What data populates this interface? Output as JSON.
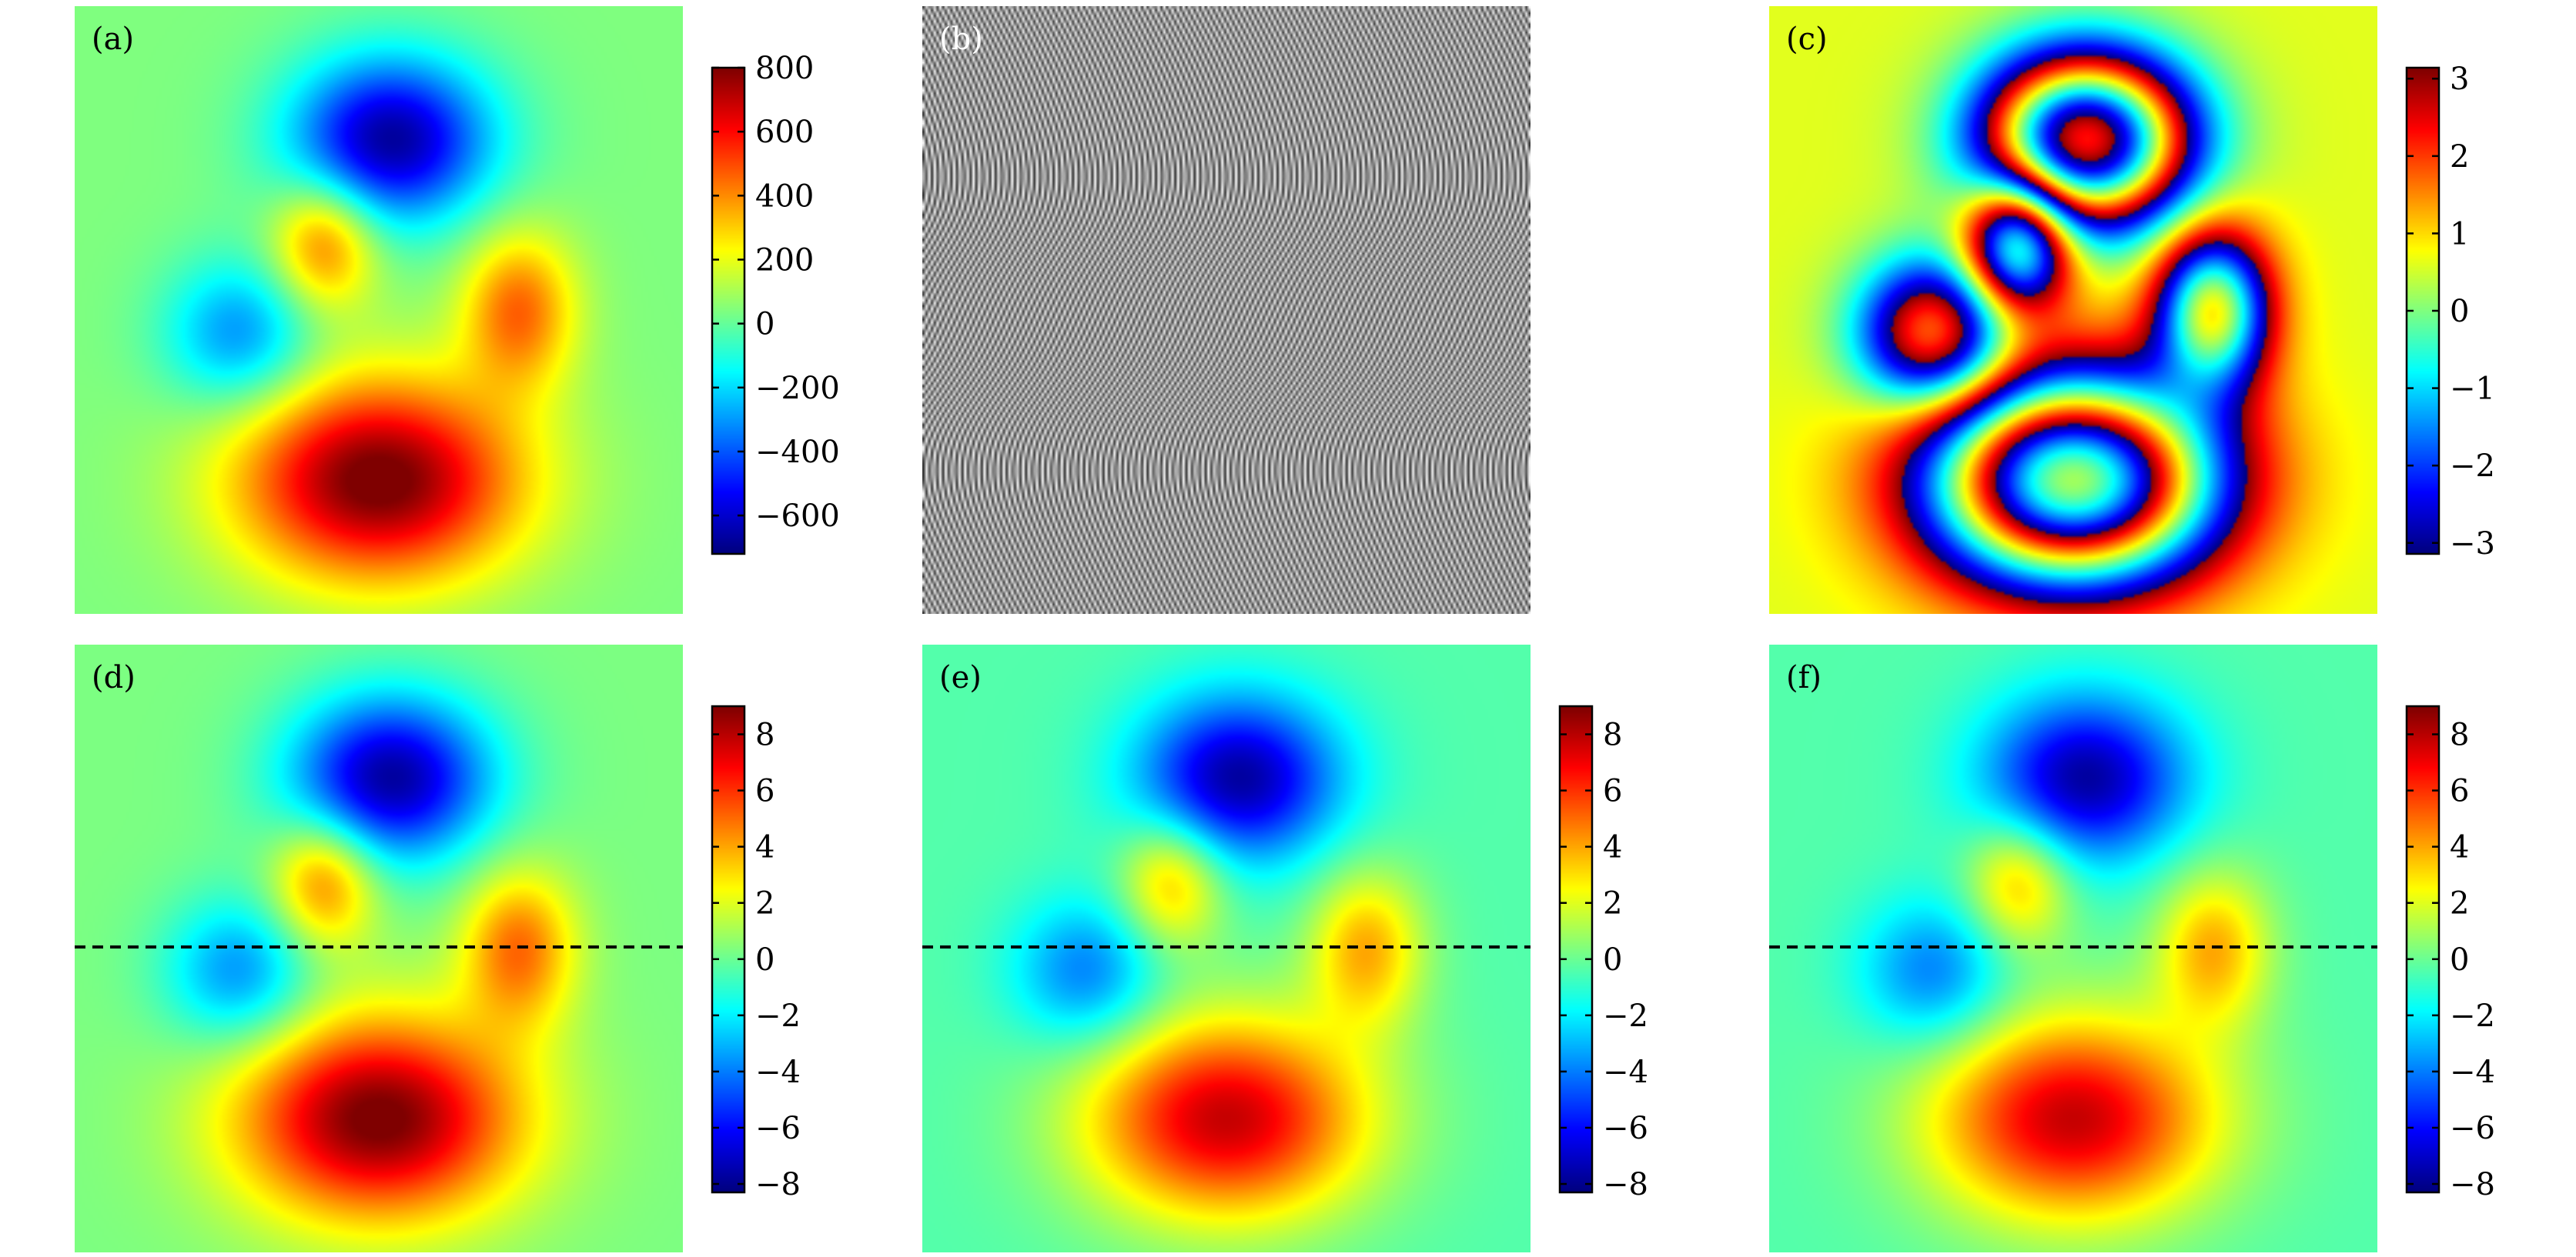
{
  "colors": {
    "jet": [
      "#00007f",
      "#0000ff",
      "#007fff",
      "#00ffff",
      "#7fff7f",
      "#ffff00",
      "#ff7f00",
      "#ff0000",
      "#7f0000"
    ],
    "background": "#ffffff",
    "label_dark": "#000000",
    "label_light": "#ffffff",
    "dashed_line": "#000000"
  },
  "chart_data": [
    {
      "id": "a",
      "type": "heatmap",
      "panel_label": "(a)",
      "colorbar": {
        "vmin": -720,
        "vmax": 800,
        "ticks": [
          800,
          600,
          400,
          200,
          0,
          -200,
          -400,
          -600
        ]
      },
      "field": {
        "kind": "lobes",
        "amplitude": 800,
        "background_value": 40,
        "dashed_line_y": null
      },
      "colormap": "jet"
    },
    {
      "id": "b",
      "type": "heatmap",
      "panel_label": "(b)",
      "colorbar": null,
      "field": {
        "kind": "fringes",
        "carrier_period_fraction": 0.008,
        "contrast": "grayscale"
      },
      "colormap": "gray"
    },
    {
      "id": "c",
      "type": "heatmap",
      "panel_label": "(c)",
      "colorbar": {
        "vmin": -3.14159,
        "vmax": 3.14159,
        "ticks": [
          3,
          2,
          1,
          0,
          -1,
          -2,
          -3
        ]
      },
      "field": {
        "kind": "wrapped",
        "amplitude": 800,
        "background_value": 40,
        "wrap_scale": 0.0152
      },
      "colormap": "jet"
    },
    {
      "id": "d",
      "type": "heatmap",
      "panel_label": "(d)",
      "colorbar": {
        "vmin": -8.3,
        "vmax": 9,
        "ticks": [
          8,
          6,
          4,
          2,
          0,
          -2,
          -4,
          -6,
          -8
        ]
      },
      "field": {
        "kind": "lobes",
        "amplitude": 9,
        "background_value": 0.3,
        "dashed_line_y": 0.5
      },
      "colormap": "jet"
    },
    {
      "id": "e",
      "type": "heatmap",
      "panel_label": "(e)",
      "colorbar": {
        "vmin": -8.3,
        "vmax": 9,
        "ticks": [
          8,
          6,
          4,
          2,
          0,
          -2,
          -4,
          -6,
          -8
        ]
      },
      "field": {
        "kind": "lobes",
        "amplitude": 8.2,
        "background_value": -0.4,
        "dashed_line_y": 0.5
      },
      "colormap": "jet"
    },
    {
      "id": "f",
      "type": "heatmap",
      "panel_label": "(f)",
      "colorbar": {
        "vmin": -8.3,
        "vmax": 9,
        "ticks": [
          8,
          6,
          4,
          2,
          0,
          -2,
          -4,
          -6,
          -8
        ]
      },
      "field": {
        "kind": "lobes",
        "amplitude": 8.2,
        "background_value": -0.4,
        "dashed_line_y": 0.5
      },
      "colormap": "jet"
    }
  ]
}
